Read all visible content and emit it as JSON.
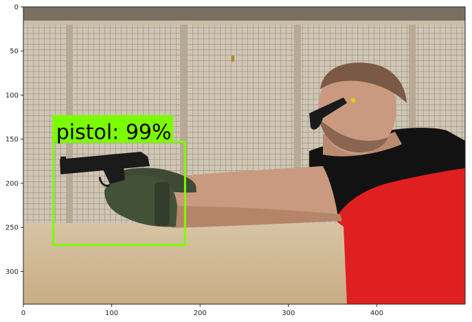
{
  "axes": {
    "x_ticks": [
      0,
      100,
      200,
      300,
      400
    ],
    "y_ticks": [
      0,
      50,
      100,
      150,
      200,
      250,
      300
    ],
    "xlim": [
      0,
      500
    ],
    "ylim": [
      337,
      0
    ]
  },
  "detection": {
    "label": "pistol: 99%",
    "box_color": "#7cfc00",
    "box_x_range": [
      34,
      183
    ],
    "box_y_range": [
      153,
      270
    ]
  },
  "colors": {
    "sky": "#e9e7df",
    "wall": "#cfc6b6",
    "ground": "#d8c3a0",
    "shirt_red": "#e02020",
    "shirt_black": "#121212",
    "skin": "#c99a7f",
    "glove": "#3e4a35",
    "pistol": "#1b1b1b"
  }
}
